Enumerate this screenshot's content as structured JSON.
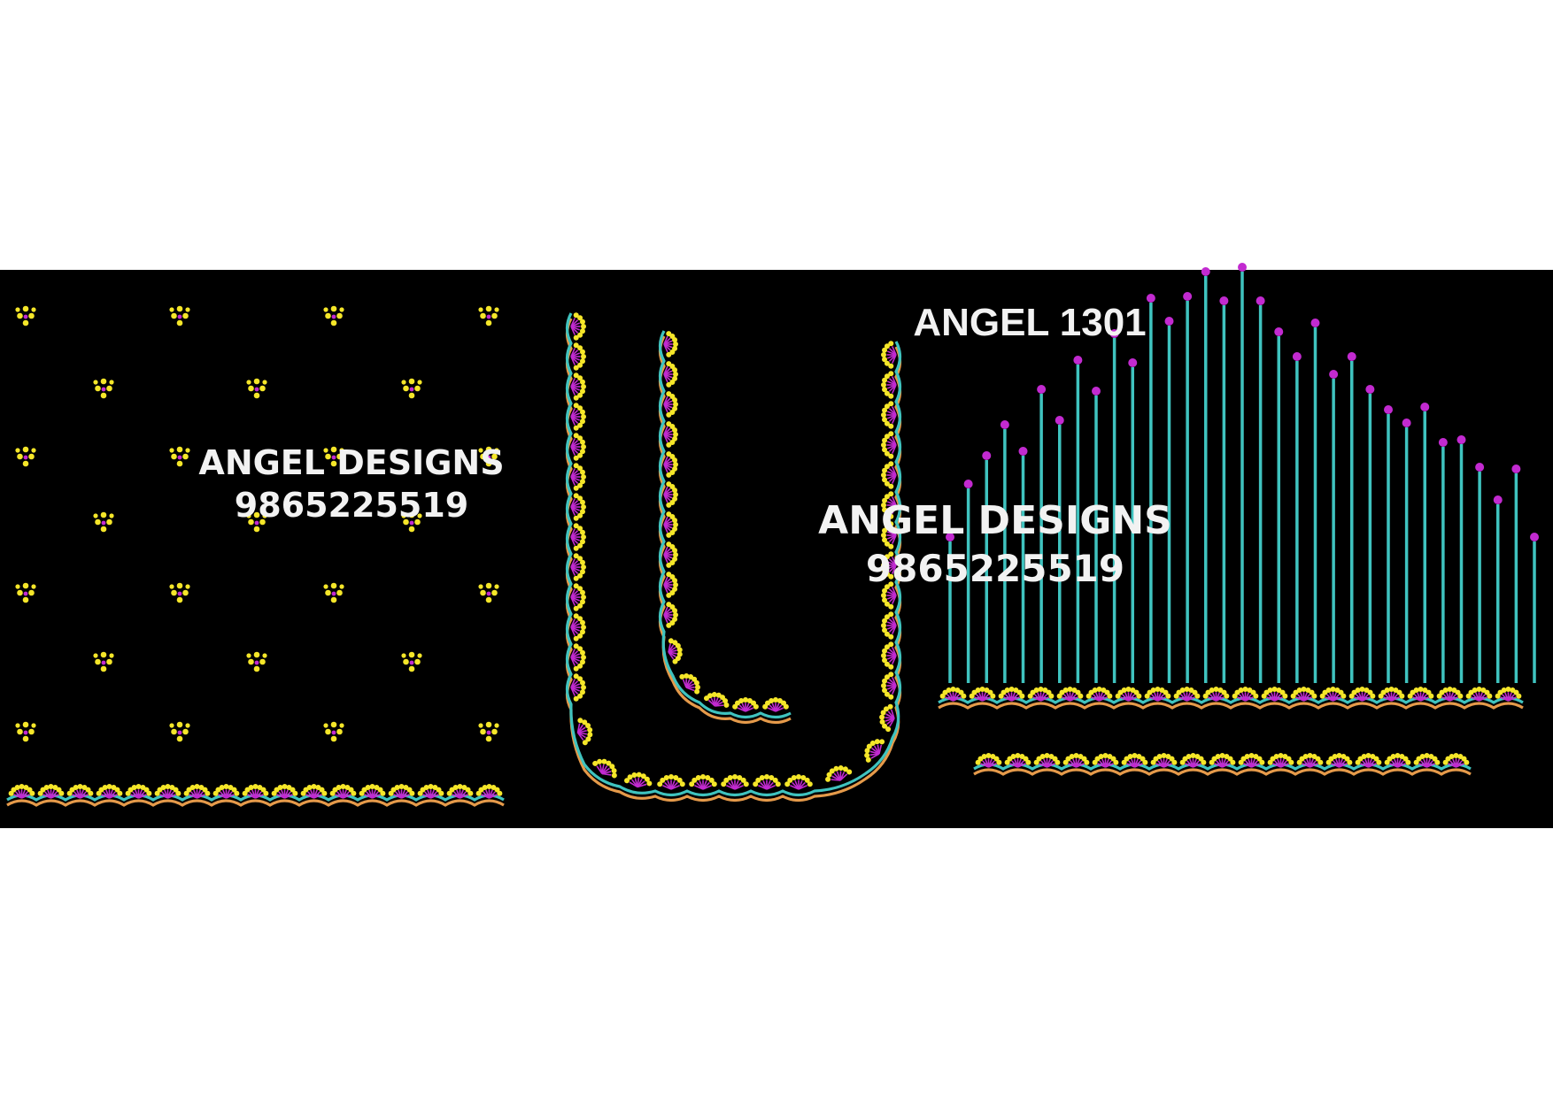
{
  "design_code": "ANGEL 1301",
  "watermarks": [
    {
      "brand": "ANGEL DESIGNS",
      "phone": "9865225519"
    },
    {
      "brand": "ANGEL DESIGNS",
      "phone": "9865225519"
    }
  ],
  "colors": {
    "page_background": "#ffffff",
    "fabric_background": "#000000",
    "yellow_thread": "#f5e629",
    "magenta_thread": "#c22ad0",
    "teal_thread": "#3fc3bf",
    "orange_thread": "#e59a4a",
    "text_thread": "#f2f2f2"
  }
}
